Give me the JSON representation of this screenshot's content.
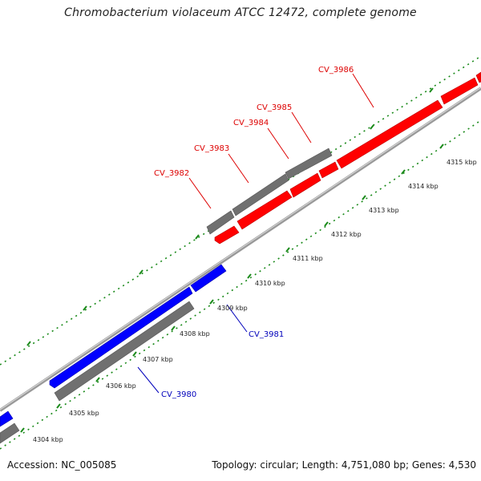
{
  "title": "Chromobacterium violaceum ATCC 12472, complete genome",
  "footer": {
    "accession": "Accession: NC_005085",
    "summary": "Topology: circular; Length: 4,751,080 bp; Genes: 4,530"
  },
  "colors": {
    "forward": "#ff0000",
    "reverse": "#0000ff",
    "other": "#777777",
    "backbone": "#999999",
    "ticks": "#1a8a1a",
    "forward_label": "#dd0000",
    "reverse_label": "#0000bb"
  },
  "ticks": [
    {
      "label": "4304 kbp"
    },
    {
      "label": "4305 kbp"
    },
    {
      "label": "4306 kbp"
    },
    {
      "label": "4307 kbp"
    },
    {
      "label": "4308 kbp"
    },
    {
      "label": "4309 kbp"
    },
    {
      "label": "4310 kbp"
    },
    {
      "label": "4311 kbp"
    },
    {
      "label": "4312 kbp"
    },
    {
      "label": "4313 kbp"
    },
    {
      "label": "4314 kbp"
    },
    {
      "label": "4315 kbp"
    }
  ],
  "gene_labels": [
    {
      "label": "CV_3980",
      "strand": "reverse"
    },
    {
      "label": "CV_3981",
      "strand": "reverse"
    },
    {
      "label": "CV_3982",
      "strand": "forward"
    },
    {
      "label": "CV_3983",
      "strand": "forward"
    },
    {
      "label": "CV_3984",
      "strand": "forward"
    },
    {
      "label": "CV_3985",
      "strand": "forward"
    },
    {
      "label": "CV_3986",
      "strand": "forward"
    }
  ]
}
